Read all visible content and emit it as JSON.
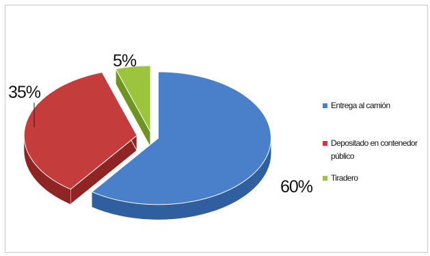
{
  "chart_data": {
    "type": "pie",
    "style": "3d-exploded",
    "title": "",
    "categories": [
      "Entrega al camión",
      "Depositado en contenedor público",
      "Tiradero"
    ],
    "values": [
      60,
      35,
      5
    ],
    "data_labels": [
      "60%",
      "35%",
      "5%"
    ],
    "colors": [
      "#4a7fc9",
      "#c43c3b",
      "#9cc43c"
    ],
    "side_colors": [
      "#2f5f9e",
      "#8f2424",
      "#6f9424"
    ],
    "legend_position": "right"
  }
}
